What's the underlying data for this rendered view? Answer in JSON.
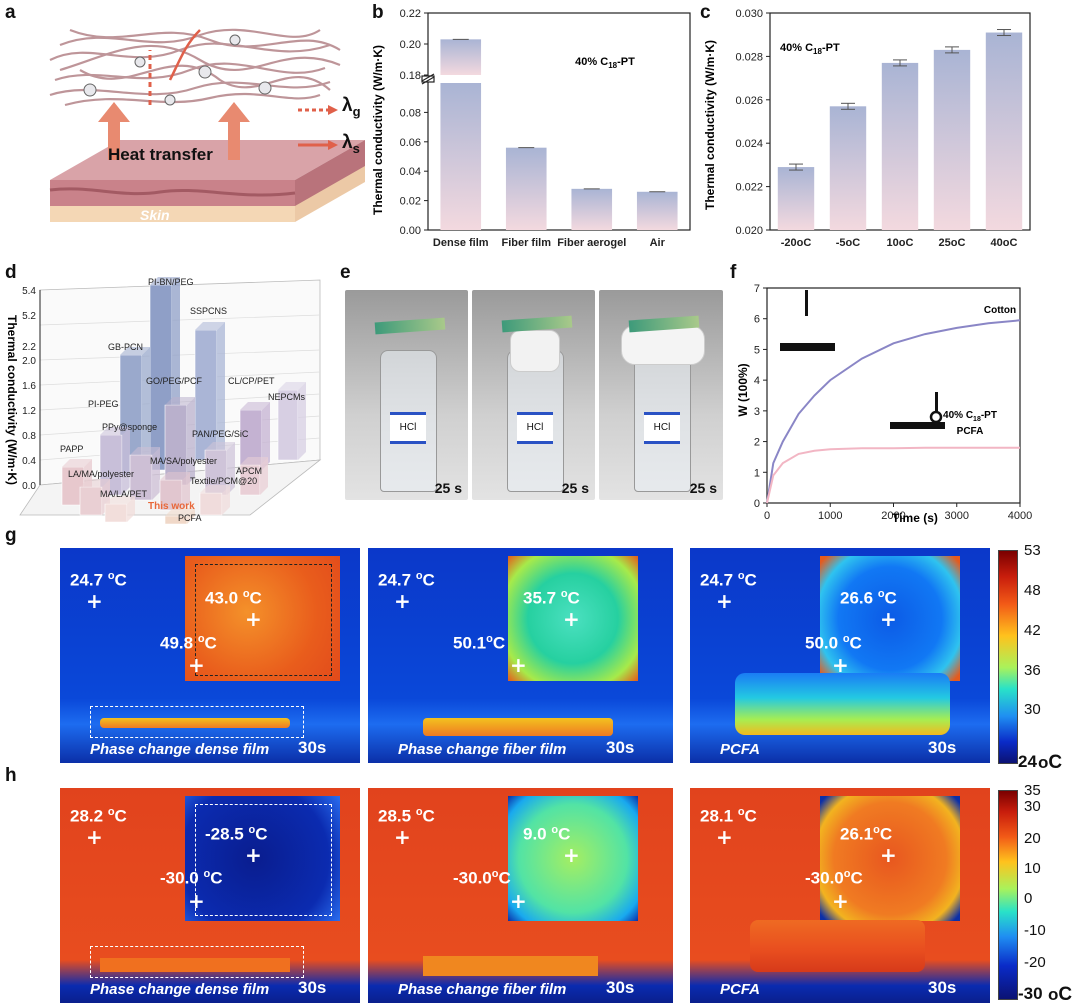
{
  "panel_labels": {
    "a": "a",
    "b": "b",
    "c": "c",
    "d": "d",
    "e": "e",
    "f": "f",
    "g": "g",
    "h": "h"
  },
  "panel_a": {
    "heat_transfer": "Heat transfer",
    "skin": "Skin",
    "lambda_g": "λg",
    "lambda_s": "λs"
  },
  "panel_b": {
    "chart_data": {
      "type": "bar",
      "categories": [
        "Dense film",
        "Fiber film",
        "Fiber aerogel",
        "Air"
      ],
      "values": [
        0.203,
        0.056,
        0.028,
        0.026
      ],
      "ylabel": "Thermal conductivity (W/m·K)",
      "axis_break": [
        0.1,
        0.18
      ],
      "lower_ticks": [
        "0.00",
        "0.02",
        "0.04",
        "0.06",
        "0.08"
      ],
      "upper_ticks": [
        "0.18",
        "0.20",
        "0.22"
      ],
      "annotation": "40% C18-PT"
    }
  },
  "panel_c": {
    "chart_data": {
      "type": "bar",
      "categories": [
        "-20oC",
        "-5oC",
        "10oC",
        "25oC",
        "40oC"
      ],
      "values": [
        0.0229,
        0.0257,
        0.0277,
        0.0283,
        0.0291
      ],
      "ylabel": "Thermal conductivity (W/m·K)",
      "ylim": [
        0.02,
        0.03
      ],
      "ticks": [
        "0.020",
        "0.022",
        "0.024",
        "0.026",
        "0.028",
        "0.030"
      ],
      "annotation": "40% C18-PT"
    }
  },
  "panel_d": {
    "chart_data": {
      "type": "bar",
      "zlabel": "Thermal conductivity (W/m·K)",
      "ticks": [
        "0.0",
        "0.4",
        "0.8",
        "1.2",
        "1.6",
        "2.0",
        "2.2",
        "5.2",
        "5.4"
      ],
      "labels": [
        "PI-BN/PEG",
        "SSPCNS",
        "GB-PCN",
        "GO/PEG/PCF",
        "CL/CP/PET",
        "NEPCMs",
        "PI-PEG",
        "PPy@sponge",
        "PAN/PEG/SiC",
        "PAPP",
        "MA/SA/polyester",
        "LA/MA/polyester",
        "APCM",
        "Textile/PCM@20",
        "MA/LA/PET",
        "This work",
        "PCFA"
      ]
    }
  },
  "panel_e": {
    "time_labels": [
      "25 s",
      "25 s",
      "25 s"
    ],
    "bottle_label": "HCl"
  },
  "panel_f": {
    "chart_data": {
      "type": "line",
      "xlabel": "Time (s)",
      "ylabel": "W (100%)",
      "xlim": [
        0,
        4000
      ],
      "ylim": [
        0,
        7
      ],
      "xticks": [
        "0",
        "1000",
        "2000",
        "3000",
        "4000"
      ],
      "yticks": [
        "0",
        "1",
        "2",
        "3",
        "4",
        "5",
        "6",
        "7"
      ],
      "series": [
        {
          "name": "Cotton",
          "x": [
            0,
            100,
            250,
            500,
            750,
            1000,
            1500,
            2000,
            2500,
            3000,
            3500,
            4000
          ],
          "y": [
            0,
            1.3,
            2.0,
            2.9,
            3.5,
            4.0,
            4.7,
            5.2,
            5.5,
            5.7,
            5.85,
            5.95
          ]
        },
        {
          "name": "40% C18-PT PCFA",
          "x": [
            0,
            100,
            250,
            500,
            750,
            1000,
            1500,
            2000,
            2500,
            3000,
            3500,
            4000
          ],
          "y": [
            0,
            0.9,
            1.3,
            1.6,
            1.7,
            1.75,
            1.78,
            1.78,
            1.8,
            1.8,
            1.8,
            1.8
          ]
        }
      ]
    }
  },
  "panel_g": [
    {
      "ambient": "24.7 oC",
      "center": "43.0 oC",
      "edge": "49.8 oC",
      "caption": "Phase change dense film",
      "time": "30s"
    },
    {
      "ambient": "24.7 oC",
      "center": "35.7 oC",
      "edge": "50.1oC",
      "caption": "Phase change fiber film",
      "time": "30s"
    },
    {
      "ambient": "24.7 oC",
      "center": "26.6 oC",
      "edge": "50.0 oC",
      "caption": "PCFA",
      "time": "30s"
    }
  ],
  "panel_h": [
    {
      "ambient": "28.2 oC",
      "center": "-28.5 oC",
      "edge": "-30.0 oC",
      "caption": "Phase change dense film",
      "time": "30s"
    },
    {
      "ambient": "28.5 oC",
      "center": "9.0 oC",
      "edge": "-30.0oC",
      "caption": "Phase change fiber film",
      "time": "30s"
    },
    {
      "ambient": "28.1 oC",
      "center": "26.1oC",
      "edge": "-30.0oC",
      "caption": "PCFA",
      "time": "30s"
    }
  ],
  "colorbar_g": {
    "ticks": [
      "53",
      "48",
      "42",
      "36",
      "30",
      "24"
    ],
    "unit": "oC"
  },
  "colorbar_h": {
    "ticks": [
      "35",
      "30",
      "20",
      "10",
      "0",
      "-10",
      "-20",
      "-30"
    ],
    "unit": "oC"
  },
  "colors": {
    "hot": "#e2421e",
    "cold": "#0b2fa8",
    "bar_top": "#a9b4d4",
    "bar_bottom": "#f3d9df"
  }
}
